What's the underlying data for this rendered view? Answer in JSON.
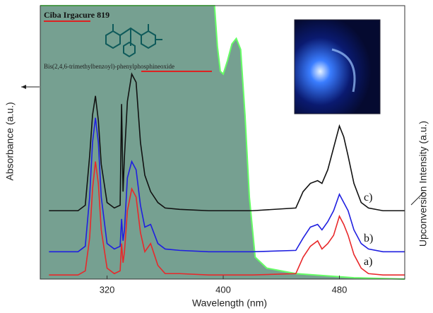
{
  "chart_data": {
    "type": "line",
    "title": "Ciba Irgacure 819",
    "subtitle": "Bis(2,4,6-trimethylbenzoyl)-phenylphosphineoxide",
    "x_label": "Wavelength (nm)",
    "y_label": "Absorbance (a.u.)",
    "y2_label": "Upconversion Intensity (a.u.)",
    "xlim": [
      274,
      525
    ],
    "xticks": [
      320,
      400,
      480
    ],
    "ylim": [
      0,
      100
    ],
    "absorbance": {
      "color": "#5e8f7e",
      "edge_color": "#66ff66",
      "x": [
        274,
        394,
        396,
        398,
        400,
        403,
        406,
        409,
        412,
        415,
        418,
        422,
        430,
        450,
        490,
        525
      ],
      "values": [
        100,
        100,
        85,
        76,
        75,
        80,
        86,
        88,
        84,
        60,
        30,
        8,
        4,
        2,
        0.5,
        0
      ]
    },
    "x": [
      280,
      300,
      305,
      308,
      310,
      312,
      314,
      316,
      320,
      325,
      329,
      330,
      331,
      332,
      334,
      337,
      340,
      343,
      346,
      350,
      355,
      360,
      370,
      390,
      420,
      450,
      455,
      460,
      465,
      468,
      472,
      476,
      480,
      483,
      486,
      490,
      495,
      500,
      510,
      525
    ],
    "series": [
      {
        "name": "a)",
        "color": "#e8282a",
        "values": [
          1.5,
          1.5,
          3,
          15,
          33,
          43,
          35,
          18,
          4,
          2,
          3,
          13,
          6,
          10,
          25,
          33,
          30,
          17,
          10,
          13,
          5,
          2,
          2,
          1.5,
          1.5,
          2,
          8,
          12,
          14,
          11,
          13,
          16,
          23,
          20,
          16,
          9,
          4,
          2,
          1.5,
          1.5
        ]
      },
      {
        "name": "b)",
        "color": "#1f1fe0",
        "values": [
          10,
          10,
          12,
          30,
          50,
          59,
          50,
          30,
          13,
          11,
          12,
          22,
          14,
          18,
          37,
          43,
          40,
          27,
          19,
          20,
          13,
          11,
          10.5,
          10,
          10,
          10.5,
          15,
          19,
          20,
          18,
          21,
          25,
          31,
          28,
          25,
          18,
          13,
          11,
          10,
          10
        ]
      },
      {
        "name": "c)",
        "color": "#111111",
        "values": [
          25,
          25,
          27,
          45,
          60,
          67,
          58,
          42,
          28,
          26,
          27,
          64,
          32,
          45,
          65,
          75,
          72,
          50,
          38,
          32,
          28,
          26,
          25.5,
          25,
          25,
          26,
          32,
          35,
          36,
          35,
          40,
          48,
          56,
          52,
          45,
          35,
          28,
          26,
          25,
          25
        ]
      }
    ]
  }
}
